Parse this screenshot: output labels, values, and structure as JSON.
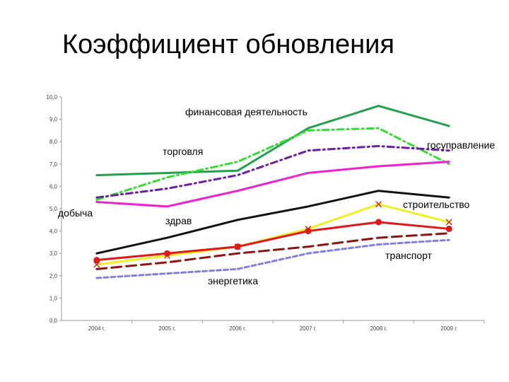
{
  "slide": {
    "title": "Коэффициент обновления"
  },
  "chart_data": {
    "type": "line",
    "title": "Коэффициент обновления",
    "categories": [
      "2004 г.",
      "2005 г.",
      "2006 г.",
      "2007 г.",
      "2008 г.",
      "2009 г."
    ],
    "y_ticks": [
      "0,0",
      "1,0",
      "2,0",
      "3,0",
      "4,0",
      "5,0",
      "6,0",
      "7,0",
      "8,0",
      "9,0",
      "10,0"
    ],
    "ylim": [
      0,
      10
    ],
    "grid": false,
    "legend": "none (series labeled directly on chart)",
    "series": [
      {
        "name": "финансовая деятельность",
        "color": "#22a04b",
        "dash": "solid",
        "values": [
          6.5,
          6.6,
          6.7,
          8.6,
          9.6,
          8.7
        ]
      },
      {
        "name": "торговля",
        "color": "#33dd33",
        "dash": "dash-dot",
        "values": [
          5.4,
          6.4,
          7.1,
          8.5,
          8.6,
          7.0
        ]
      },
      {
        "name": "госуправление",
        "color": "#6a1fa0",
        "dash": "dash-dot",
        "values": [
          5.5,
          5.9,
          6.5,
          7.6,
          7.8,
          7.6
        ]
      },
      {
        "name": "здрав",
        "color": "#ee22cc",
        "dash": "solid",
        "values": [
          5.3,
          5.1,
          5.8,
          6.6,
          6.9,
          7.1
        ]
      },
      {
        "name": "строительство",
        "color": "#111111",
        "dash": "solid",
        "values": [
          3.0,
          3.7,
          4.5,
          5.1,
          5.8,
          5.5
        ]
      },
      {
        "name": "добыча",
        "color": "#eeee22",
        "dash": "solid",
        "marker": "x",
        "values": [
          2.5,
          2.9,
          3.3,
          4.1,
          5.2,
          4.4
        ]
      },
      {
        "name": "",
        "color": "#e01818",
        "dash": "solid",
        "marker": "circle",
        "values": [
          2.7,
          3.0,
          3.3,
          4.0,
          4.4,
          4.1
        ]
      },
      {
        "name": "транспорт",
        "color": "#8b1515",
        "dash": "long-dash",
        "values": [
          2.3,
          2.6,
          3.0,
          3.3,
          3.7,
          3.9
        ]
      },
      {
        "name": "энергетика",
        "color": "#8080dd",
        "dash": "short-dash",
        "values": [
          1.9,
          2.1,
          2.3,
          3.0,
          3.4,
          3.6
        ]
      }
    ]
  }
}
